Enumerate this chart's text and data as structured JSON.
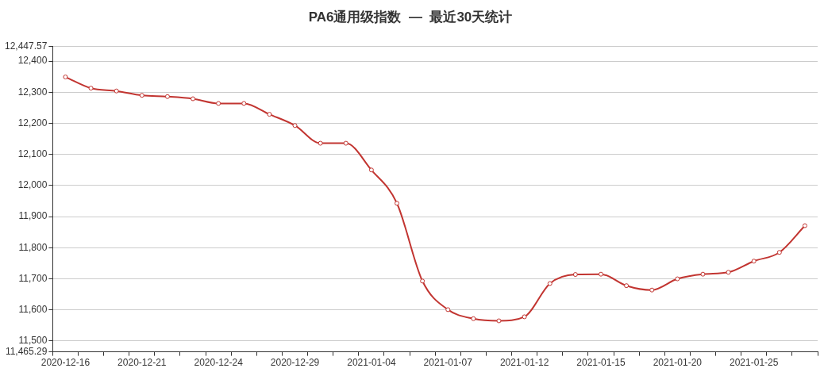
{
  "chart_data": {
    "type": "line",
    "title": "PA6通用级指数  —  最近30天统计",
    "categories": [
      "2020-12-16",
      null,
      null,
      "2020-12-21",
      null,
      null,
      "2020-12-24",
      null,
      null,
      "2020-12-29",
      null,
      null,
      "2021-01-04",
      null,
      null,
      "2021-01-07",
      null,
      null,
      "2021-01-12",
      null,
      null,
      "2021-01-15",
      null,
      null,
      "2021-01-20",
      null,
      null,
      "2021-01-25",
      null,
      null
    ],
    "series": [
      {
        "color": "#c23531",
        "values": [
          12349,
          12313,
          12304,
          12290,
          12286,
          12279,
          12264,
          12264,
          12229,
          12193,
          12136,
          12136,
          12050,
          11943,
          11693,
          11601,
          11572,
          11565,
          11578,
          11685,
          11714,
          11715,
          11678,
          11664,
          11700,
          11715,
          11721,
          11757,
          11785,
          11871
        ]
      }
    ],
    "ylim": [
      11465.29,
      12447.57
    ],
    "yticks": [
      {
        "value": 11465.29,
        "label": "11,465.29"
      },
      {
        "value": 11500,
        "label": "11,500"
      },
      {
        "value": 11600,
        "label": "11,600"
      },
      {
        "value": 11700,
        "label": "11,700"
      },
      {
        "value": 11800,
        "label": "11,800"
      },
      {
        "value": 11900,
        "label": "11,900"
      },
      {
        "value": 12000,
        "label": "12,000"
      },
      {
        "value": 12100,
        "label": "12,100"
      },
      {
        "value": 12200,
        "label": "12,200"
      },
      {
        "value": 12300,
        "label": "12,300"
      },
      {
        "value": 12400,
        "label": "12,400"
      },
      {
        "value": 12447.57,
        "label": "12,447.57"
      }
    ],
    "grid": "y",
    "legend": false,
    "marker": "circle",
    "line_style": "solid"
  }
}
